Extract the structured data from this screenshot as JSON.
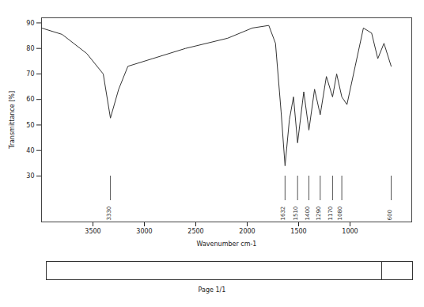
{
  "chart_data": {
    "type": "line",
    "title": "",
    "x_label": "Wavenumber cm-1",
    "y_label": "Transmittance [%]",
    "x": [
      4000,
      3800,
      3560,
      3400,
      3330,
      3250,
      3160,
      2920,
      2600,
      2190,
      1950,
      1790,
      1725,
      1670,
      1632,
      1590,
      1550,
      1510,
      1450,
      1400,
      1345,
      1290,
      1230,
      1170,
      1130,
      1080,
      1030,
      950,
      870,
      790,
      730,
      670,
      600
    ],
    "values": [
      88,
      85.5,
      78,
      70,
      52.7,
      64,
      73,
      76,
      80,
      84,
      88,
      89,
      82,
      55,
      34,
      52,
      61,
      43,
      63,
      48,
      64,
      54,
      69,
      61,
      70,
      61,
      58,
      73,
      88,
      86,
      76,
      82,
      73
    ],
    "color": "#333333",
    "xlim": [
      4000,
      400
    ],
    "xticks": [
      3500,
      3000,
      2500,
      2000,
      1500,
      1000
    ],
    "ylim": [
      12,
      92
    ],
    "yticks": [
      30,
      40,
      50,
      60,
      70,
      80,
      90
    ],
    "grid": false,
    "peaks": [
      3330,
      1632,
      1510,
      1400,
      1290,
      1170,
      1080,
      600
    ],
    "page": "Page 1/1"
  }
}
